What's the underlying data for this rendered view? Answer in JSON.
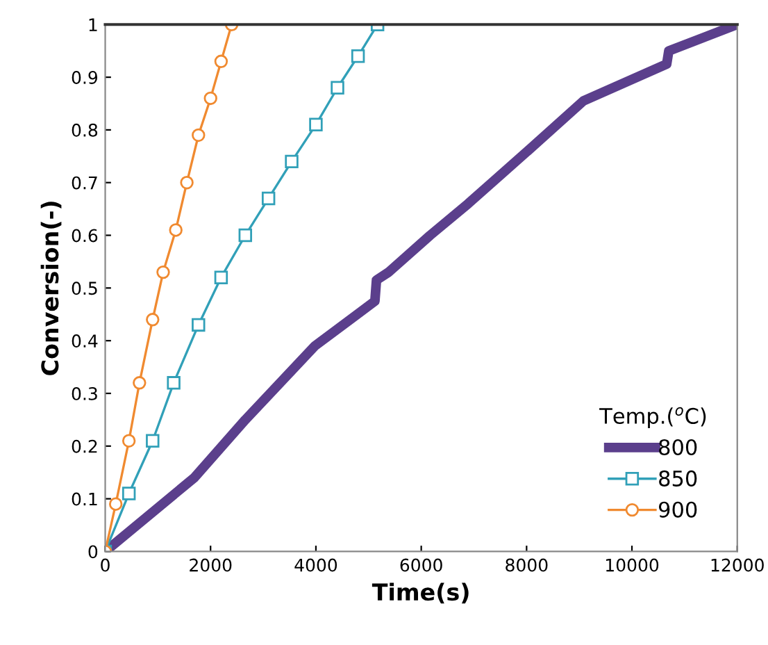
{
  "chart_data": {
    "type": "line",
    "xlabel": "Time(s)",
    "ylabel": "Conversion(-)",
    "legend_title": "Temp.($^{o}$C)",
    "legend": "bottom right",
    "grid": false,
    "xlim": [
      0,
      12000
    ],
    "xticks": [
      0,
      2000,
      4000,
      6000,
      8000,
      10000,
      12000
    ],
    "ylim": [
      0,
      1
    ],
    "yticks": [
      0,
      0.1,
      0.2,
      0.3,
      0.4,
      0.5,
      0.6,
      0.7,
      0.8,
      0.9,
      1
    ],
    "series": [
      {
        "name": "800",
        "color": "#5b3f8c",
        "marker": "none",
        "x": [
          0,
          1690,
          2660,
          3980,
          5120,
          5150,
          5380,
          6170,
          6890,
          8020,
          9080,
          10660,
          10700,
          12000
        ],
        "values": [
          0,
          0.14,
          0.25,
          0.39,
          0.475,
          0.515,
          0.53,
          0.6,
          0.66,
          0.76,
          0.855,
          0.925,
          0.95,
          1.0
        ]
      },
      {
        "name": "850",
        "color": "#31a0b8",
        "marker": "square",
        "x": [
          0,
          450,
          900,
          1300,
          1770,
          2200,
          2660,
          3100,
          3540,
          4000,
          4410,
          4800,
          5170
        ],
        "values": [
          0,
          0.11,
          0.21,
          0.32,
          0.43,
          0.52,
          0.6,
          0.67,
          0.74,
          0.81,
          0.88,
          0.94,
          1.0
        ]
      },
      {
        "name": "900",
        "color": "#f08a30",
        "marker": "circle",
        "x": [
          0,
          200,
          450,
          650,
          900,
          1100,
          1340,
          1550,
          1770,
          2000,
          2200,
          2400
        ],
        "values": [
          0,
          0.09,
          0.21,
          0.32,
          0.44,
          0.53,
          0.61,
          0.7,
          0.79,
          0.86,
          0.93,
          1.0
        ]
      }
    ]
  }
}
